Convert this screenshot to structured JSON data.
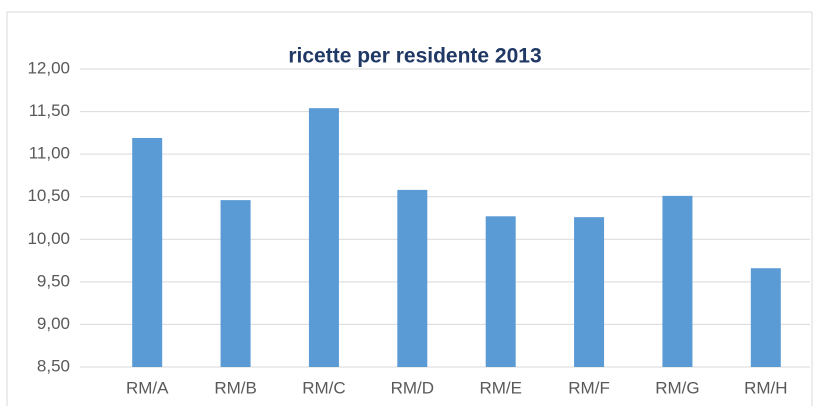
{
  "chart_data": {
    "type": "bar",
    "title": "ricette per residente 2013",
    "categories": [
      "RM/A",
      "RM/B",
      "RM/C",
      "RM/D",
      "RM/E",
      "RM/F",
      "RM/G",
      "RM/H"
    ],
    "values": [
      11.19,
      10.46,
      11.54,
      10.58,
      10.27,
      10.26,
      10.51,
      9.66
    ],
    "color": "#5b9bd5",
    "ylim": [
      8.5,
      12
    ],
    "yticks": [
      {
        "value": 8.5,
        "label": "8,50"
      },
      {
        "value": 9,
        "label": "9,00"
      },
      {
        "value": 9.5,
        "label": "9,50"
      },
      {
        "value": 10,
        "label": "10,00"
      },
      {
        "value": 10.5,
        "label": "10,50"
      },
      {
        "value": 11,
        "label": "11,00"
      },
      {
        "value": 11.5,
        "label": "11,50"
      },
      {
        "value": 12,
        "label": "12,00"
      }
    ],
    "grid": true
  }
}
